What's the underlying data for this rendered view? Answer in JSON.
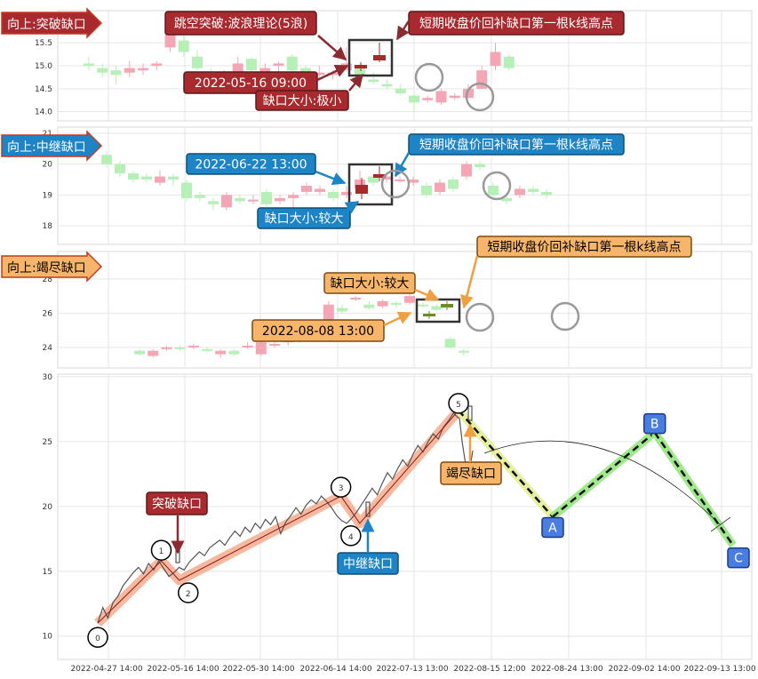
{
  "colors": {
    "up": "#f4a6b4",
    "down": "#b6f0b6",
    "dark_up": "#a52a2a",
    "dark_down": "#6b8e23",
    "red_box": "#a82a2f",
    "blue_box": "#1d84c6",
    "orange_box": "#f7b56a",
    "wave_fill": "#f4a07e",
    "proj_light": "#e6f0a0",
    "proj_green": "#9fe88c",
    "node_blue": "#4a7de0"
  },
  "chart_data": [
    {
      "type": "candlestick",
      "panel": "breakaway-gap",
      "header": "向上:突破缺口",
      "yticks": [
        "14.0",
        "14.5",
        "15.0",
        "15.5"
      ],
      "ylim": [
        13.8,
        16.2
      ],
      "candles": [
        [
          15.05,
          15.0,
          15.2,
          14.9
        ],
        [
          14.95,
          14.85,
          15.05,
          14.75
        ],
        [
          14.9,
          14.8,
          15.0,
          14.6
        ],
        [
          14.85,
          14.95,
          15.1,
          14.75
        ],
        [
          14.9,
          14.95,
          15.05,
          14.8
        ],
        [
          15.0,
          15.05,
          15.1,
          14.9
        ],
        [
          15.4,
          15.8,
          15.9,
          15.3
        ],
        [
          15.55,
          15.3,
          15.7,
          15.2
        ],
        [
          15.2,
          14.95,
          15.35,
          14.9
        ],
        [
          14.85,
          14.7,
          14.95,
          14.6
        ],
        [
          14.75,
          14.85,
          14.9,
          14.7
        ],
        [
          14.7,
          15.05,
          15.2,
          14.65
        ],
        [
          15.15,
          14.9,
          15.2,
          14.8
        ],
        [
          14.85,
          14.95,
          15.05,
          14.8
        ],
        [
          15.0,
          15.05,
          15.1,
          14.85
        ],
        [
          15.2,
          14.9,
          15.25,
          14.8
        ],
        [
          14.95,
          14.85,
          15.0,
          14.75
        ],
        [
          14.8,
          14.85,
          15.0,
          14.7
        ],
        [
          14.8,
          14.85,
          14.9,
          14.7
        ],
        [
          14.9,
          15.05,
          15.4,
          14.9
        ],
        [
          15.0,
          14.8,
          15.05,
          14.7
        ],
        [
          14.7,
          14.65,
          14.85,
          14.6
        ],
        [
          14.6,
          14.55,
          14.7,
          14.5
        ],
        [
          14.5,
          14.4,
          14.6,
          14.35
        ],
        [
          14.35,
          14.2,
          14.45,
          14.0
        ],
        [
          14.25,
          14.3,
          14.35,
          14.2
        ],
        [
          14.2,
          14.45,
          14.5,
          14.15
        ],
        [
          14.3,
          14.35,
          14.4,
          14.25
        ],
        [
          14.3,
          14.5,
          14.6,
          14.3
        ],
        [
          14.5,
          14.9,
          15.0,
          14.5
        ],
        [
          15.0,
          15.3,
          15.5,
          14.9
        ],
        [
          15.2,
          14.95,
          15.25,
          14.9
        ]
      ],
      "annotations": [
        "跳空突破:波浪理论(5浪)",
        "短期收盘价回补缺口第一根k线高点",
        "2022-05-16 09:00",
        "缺口大小:极小"
      ]
    },
    {
      "type": "candlestick",
      "panel": "runaway-gap",
      "header": "向上:中继缺口",
      "yticks": [
        "18",
        "19",
        "20",
        "21"
      ],
      "ylim": [
        17.4,
        21.2
      ],
      "candles": [
        [
          20.3,
          20.0,
          20.4,
          19.9
        ],
        [
          20.0,
          19.7,
          20.1,
          19.6
        ],
        [
          19.7,
          19.5,
          19.8,
          19.4
        ],
        [
          19.6,
          19.5,
          19.7,
          19.4
        ],
        [
          19.4,
          19.6,
          19.8,
          19.3
        ],
        [
          19.6,
          19.5,
          19.7,
          19.3
        ],
        [
          19.4,
          18.9,
          19.5,
          18.8
        ],
        [
          19.0,
          18.9,
          19.1,
          18.8
        ],
        [
          18.8,
          18.7,
          18.9,
          18.5
        ],
        [
          18.6,
          19.0,
          19.1,
          18.5
        ],
        [
          18.9,
          18.8,
          19.0,
          18.7
        ],
        [
          18.8,
          18.85,
          19.0,
          18.7
        ],
        [
          19.1,
          18.7,
          19.2,
          18.6
        ],
        [
          18.8,
          18.9,
          19.0,
          18.7
        ],
        [
          18.9,
          19.0,
          19.1,
          18.5
        ],
        [
          19.1,
          19.3,
          19.4,
          19.0
        ],
        [
          19.1,
          19.2,
          19.3,
          19.0
        ],
        [
          19.1,
          18.9,
          19.2,
          18.8
        ],
        [
          19.0,
          19.1,
          19.3,
          18.9
        ],
        [
          19.2,
          19.5,
          19.8,
          19.1
        ],
        [
          19.6,
          19.4,
          19.7,
          19.3
        ],
        [
          19.5,
          19.6,
          19.7,
          19.4
        ],
        [
          19.5,
          19.5,
          19.6,
          19.4
        ],
        [
          19.4,
          19.5,
          19.6,
          19.3
        ],
        [
          19.3,
          19.0,
          19.4,
          18.9
        ],
        [
          19.1,
          19.4,
          19.5,
          19.0
        ],
        [
          19.5,
          19.2,
          19.6,
          19.1
        ],
        [
          19.6,
          20.0,
          20.1,
          19.5
        ],
        [
          20.0,
          19.9,
          20.1,
          19.8
        ],
        [
          19.3,
          19.0,
          19.4,
          18.9
        ],
        [
          18.9,
          18.8,
          19.0,
          18.7
        ],
        [
          19.0,
          19.2,
          19.3,
          18.9
        ],
        [
          19.2,
          19.1,
          19.3,
          19.0
        ],
        [
          19.1,
          19.0,
          19.2,
          18.9
        ]
      ],
      "annotations": [
        "2022-06-22 13:00",
        "短期收盘价回补缺口第一根k线高点",
        "缺口大小:较大"
      ]
    },
    {
      "type": "candlestick",
      "panel": "exhaustion-gap",
      "header": "向上:竭尽缺口",
      "yticks": [
        "24",
        "26",
        "28"
      ],
      "ylim": [
        22.8,
        29.6
      ],
      "candles": [
        [
          23.8,
          23.6,
          23.9,
          23.5
        ],
        [
          23.5,
          23.8,
          23.9,
          23.4
        ],
        [
          23.9,
          24.0,
          24.1,
          23.8
        ],
        [
          24.0,
          23.9,
          24.1,
          23.8
        ],
        [
          24.0,
          24.1,
          24.2,
          23.9
        ],
        [
          23.9,
          23.8,
          24.0,
          23.7
        ],
        [
          23.6,
          23.8,
          23.9,
          23.4
        ],
        [
          23.8,
          23.6,
          23.9,
          23.5
        ],
        [
          24.0,
          24.1,
          24.3,
          23.9
        ],
        [
          23.6,
          24.3,
          24.4,
          23.5
        ],
        [
          24.1,
          24.2,
          24.3,
          24.0
        ],
        [
          24.3,
          24.5,
          24.6,
          24.1
        ],
        [
          24.6,
          24.4,
          24.7,
          24.3
        ],
        [
          24.8,
          25.0,
          25.1,
          24.6
        ],
        [
          25.2,
          26.5,
          26.7,
          25.0
        ],
        [
          26.3,
          26.1,
          26.5,
          26.0
        ],
        [
          26.8,
          26.9,
          27.0,
          26.7
        ],
        [
          26.5,
          26.3,
          26.7,
          26.2
        ],
        [
          26.4,
          26.7,
          26.8,
          26.3
        ],
        [
          26.6,
          26.5,
          26.7,
          26.3
        ],
        [
          26.6,
          27.0,
          27.1,
          26.5
        ],
        [
          26.5,
          26.4,
          26.6,
          26.3
        ],
        [
          26.4,
          26.2,
          26.5,
          26.1
        ],
        [
          24.5,
          24.0,
          24.6,
          23.9
        ],
        [
          23.8,
          23.7,
          23.9,
          23.5
        ]
      ],
      "annotations": [
        "缺口大小:较大",
        "短期收盘价回补缺口第一根k线高点",
        "2022-08-08 13:00"
      ]
    },
    {
      "type": "line",
      "panel": "wave-chart",
      "yticks": [
        "10",
        "15",
        "20",
        "25",
        "30"
      ],
      "ylim": [
        8.2,
        30.2
      ],
      "x": [
        "2022-04-27 14:00",
        "2022-05-16 14:00",
        "2022-05-30 14:00",
        "2022-06-14 14:00",
        "2022-07-13 13:00",
        "2022-08-15 12:00",
        "2022-08-24 13:00",
        "2022-09-02 14:00",
        "2022-09-13 13:00"
      ],
      "wave_labels": [
        "0",
        "1",
        "2",
        "3",
        "4",
        "5"
      ],
      "projection_labels": [
        "A",
        "B",
        "C"
      ],
      "gap_labels": [
        "突破缺口",
        "中继缺口",
        "竭尽缺口"
      ],
      "wave_points": [
        [
          0.0,
          11.0
        ],
        [
          0.81,
          15.8
        ],
        [
          1.04,
          14.3
        ],
        [
          3.1,
          20.8
        ],
        [
          3.34,
          18.7
        ],
        [
          4.6,
          27.4
        ]
      ],
      "projection_points": [
        [
          4.6,
          27.4
        ],
        [
          5.8,
          19.2
        ],
        [
          7.1,
          25.7
        ],
        [
          8.1,
          17.0
        ]
      ],
      "price_series": [
        11.0,
        12.2,
        11.4,
        12.6,
        13.1,
        13.9,
        14.4,
        14.9,
        15.3,
        14.8,
        15.6,
        15.1,
        15.8,
        15.2,
        14.6,
        14.9,
        15.3,
        15.1,
        15.7,
        16.1,
        16.5,
        16.2,
        16.8,
        17.1,
        17.4,
        17.0,
        17.6,
        18.1,
        17.7,
        18.4,
        18.0,
        18.7,
        18.3,
        19.0,
        18.6,
        19.2,
        17.9,
        18.8,
        19.3,
        19.9,
        19.4,
        20.1,
        20.5,
        20.2,
        20.8,
        20.4,
        19.9,
        19.3,
        18.9,
        18.7,
        19.1,
        19.6,
        20.2,
        20.8,
        21.4,
        20.9,
        21.8,
        22.6,
        22.1,
        22.9,
        23.6,
        23.1,
        24.0,
        24.7,
        24.2,
        25.0,
        25.6,
        25.2,
        26.1,
        26.6,
        27.2,
        26.8,
        25.0,
        23.2,
        22.6,
        24.3
      ]
    }
  ]
}
